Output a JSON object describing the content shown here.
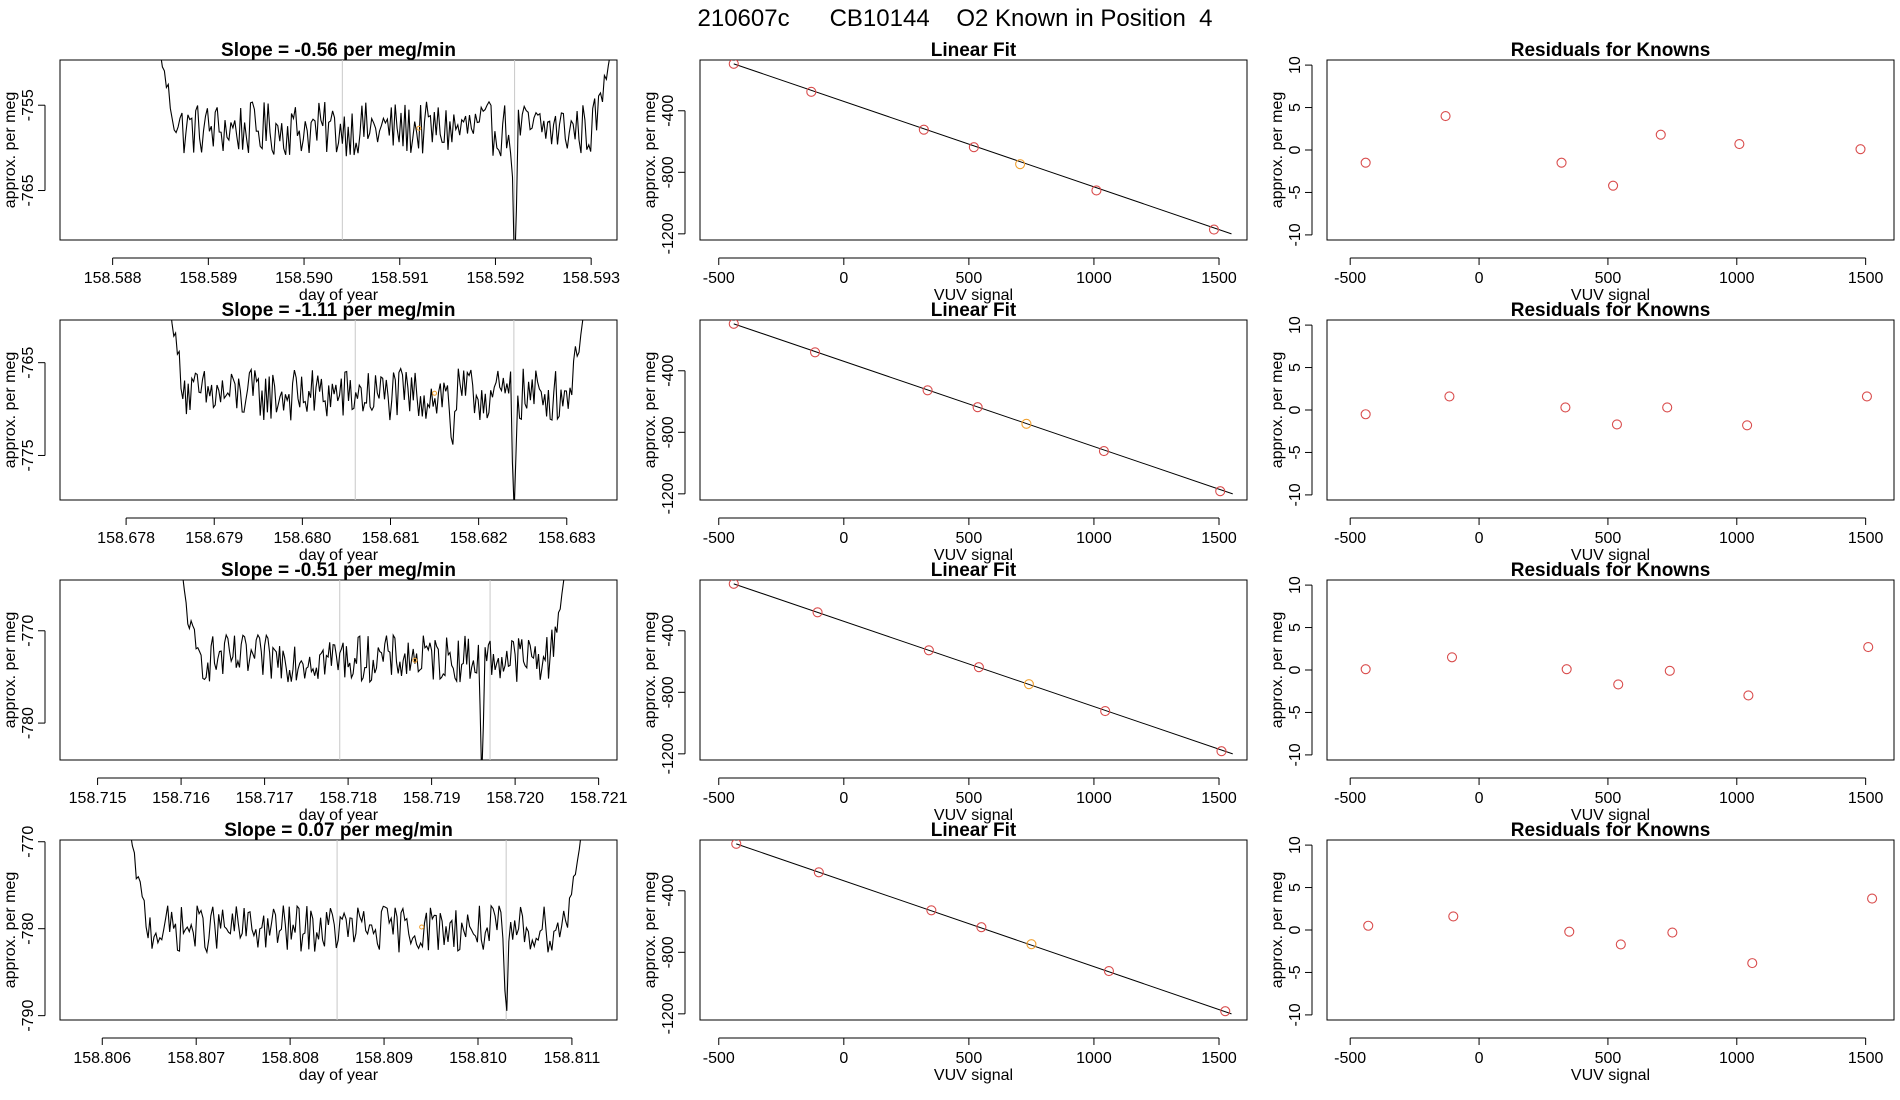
{
  "figure_title": "210607c      CB10144    O2 Known in Position  4",
  "colors": {
    "series": "#000000",
    "marker": "#d94c4c",
    "highlight": "#f0a030",
    "guide": "#c8c8c8",
    "axis": "#000000"
  },
  "chart_data": [
    {
      "type": "line",
      "row": 1,
      "col": 1,
      "title": "Slope =  -0.56  per meg/min",
      "xlabel": "day of year",
      "ylabel": "approx. per meg",
      "xlim": [
        158.58745,
        158.59327
      ],
      "ylim": [
        -770.8,
        -749.7
      ],
      "xticks": [
        "158.588",
        "158.589",
        "158.590",
        "158.591",
        "158.592",
        "158.593"
      ],
      "yticks": [
        "-755",
        "-765"
      ],
      "vlines": [
        158.5904,
        158.5922
      ],
      "marker": {
        "x": 158.5912,
        "y": -757.7
      },
      "x_start": 158.5885,
      "x_end": 158.5932,
      "y_start": -749,
      "y_end": -749,
      "baseline": -757.8,
      "noise": 2.0,
      "dips": [
        {
          "x": 158.5922,
          "y": -775
        }
      ]
    },
    {
      "type": "line",
      "row": 2,
      "col": 1,
      "title": "Slope =  -1.11  per meg/min",
      "xlabel": "day of year",
      "ylabel": "approx. per meg",
      "xlim": [
        158.67725,
        158.68357
      ],
      "ylim": [
        -779.8,
        -760.4
      ],
      "xticks": [
        "158.678",
        "158.679",
        "158.680",
        "158.681",
        "158.682",
        "158.683"
      ],
      "yticks": [
        "-765",
        "-775"
      ],
      "vlines": [
        158.6806,
        158.6824
      ],
      "marker": {
        "x": 158.6815,
        "y": -768.3
      },
      "x_start": 158.6785,
      "x_end": 158.6832,
      "y_start": -759,
      "y_end": -759,
      "baseline": -768.5,
      "noise": 1.8,
      "dips": [
        {
          "x": 158.6824,
          "y": -782
        },
        {
          "x": 158.6817,
          "y": -775
        }
      ]
    },
    {
      "type": "line",
      "row": 3,
      "col": 1,
      "title": "Slope =  -0.51  per meg/min",
      "xlabel": "day of year",
      "ylabel": "approx. per meg",
      "xlim": [
        158.71455,
        158.72122
      ],
      "ylim": [
        -784.0,
        -764.5
      ],
      "xticks": [
        "158.715",
        "158.716",
        "158.717",
        "158.718",
        "158.719",
        "158.720",
        "158.721"
      ],
      "yticks": [
        "-770",
        "-780"
      ],
      "vlines": [
        158.7179,
        158.7197
      ],
      "marker": {
        "x": 158.7188,
        "y": -773.2
      },
      "x_start": 158.716,
      "x_end": 158.7206,
      "y_start": -763,
      "y_end": -763,
      "baseline": -773.0,
      "noise": 1.6,
      "dips": [
        {
          "x": 158.7196,
          "y": -786
        }
      ]
    },
    {
      "type": "line",
      "row": 4,
      "col": 1,
      "title": "Slope =  0.07  per meg/min",
      "xlabel": "day of year",
      "ylabel": "approx. per meg",
      "xlim": [
        158.80555,
        158.81148
      ],
      "ylim": [
        -790.5,
        -769.8
      ],
      "xticks": [
        "158.806",
        "158.807",
        "158.808",
        "158.809",
        "158.810",
        "158.811"
      ],
      "yticks": [
        "-770",
        "-780",
        "-790"
      ],
      "vlines": [
        158.8085,
        158.8103
      ],
      "marker": {
        "x": 158.8094,
        "y": -779.8
      },
      "x_start": 158.8063,
      "x_end": 158.8111,
      "y_start": -769,
      "y_end": -769,
      "baseline": -780.0,
      "noise": 1.7,
      "dips": [
        {
          "x": 158.8103,
          "y": -792
        }
      ]
    },
    {
      "type": "scatter",
      "row": 1,
      "col": 2,
      "title": "Linear Fit",
      "xlabel": "VUV signal",
      "ylabel": "approx. per meg",
      "xlim": [
        -575,
        1612
      ],
      "ylim": [
        -1240,
        -70
      ],
      "xticks": [
        -500,
        0,
        500,
        1000,
        1500
      ],
      "yticks": [
        -400,
        -800,
        -1200
      ],
      "fit": {
        "x0": -440,
        "y0": -95,
        "x1": 1550,
        "y1": -1200
      },
      "x": [
        -440,
        -130,
        320,
        520,
        705,
        1010,
        1480
      ],
      "y": [
        -95,
        -277,
        -523,
        -637,
        -747,
        -918,
        -1172
      ],
      "highlight_index": 4
    },
    {
      "type": "scatter",
      "row": 2,
      "col": 2,
      "title": "Linear Fit",
      "xlabel": "VUV signal",
      "ylabel": "approx. per meg",
      "xlim": [
        -575,
        1612
      ],
      "ylim": [
        -1240,
        -70
      ],
      "xticks": [
        -500,
        0,
        500,
        1000,
        1500
      ],
      "yticks": [
        -400,
        -800,
        -1200
      ],
      "fit": {
        "x0": -440,
        "y0": -95,
        "x1": 1555,
        "y1": -1200
      },
      "x": [
        -440,
        -115,
        335,
        535,
        730,
        1040,
        1505
      ],
      "y": [
        -95,
        -280,
        -527,
        -637,
        -745,
        -922,
        -1183
      ],
      "highlight_index": 4
    },
    {
      "type": "scatter",
      "row": 3,
      "col": 2,
      "title": "Linear Fit",
      "xlabel": "VUV signal",
      "ylabel": "approx. per meg",
      "xlim": [
        -575,
        1612
      ],
      "ylim": [
        -1240,
        -70
      ],
      "xticks": [
        -500,
        0,
        500,
        1000,
        1500
      ],
      "yticks": [
        -400,
        -800,
        -1200
      ],
      "fit": {
        "x0": -440,
        "y0": -95,
        "x1": 1555,
        "y1": -1200
      },
      "x": [
        -440,
        -105,
        340,
        540,
        740,
        1045,
        1510
      ],
      "y": [
        -95,
        -280,
        -527,
        -637,
        -747,
        -922,
        -1183
      ],
      "highlight_index": 4
    },
    {
      "type": "scatter",
      "row": 4,
      "col": 2,
      "title": "Linear Fit",
      "xlabel": "VUV signal",
      "ylabel": "approx. per meg",
      "xlim": [
        -575,
        1612
      ],
      "ylim": [
        -1240,
        -70
      ],
      "xticks": [
        -500,
        0,
        500,
        1000,
        1500
      ],
      "yticks": [
        -400,
        -800,
        -1200
      ],
      "fit": {
        "x0": -430,
        "y0": -95,
        "x1": 1550,
        "y1": -1200
      },
      "x": [
        -430,
        -100,
        350,
        550,
        750,
        1060,
        1525
      ],
      "y": [
        -95,
        -280,
        -527,
        -637,
        -747,
        -922,
        -1183
      ],
      "highlight_index": 4
    },
    {
      "type": "scatter",
      "row": 1,
      "col": 3,
      "title": "Residuals for Knowns",
      "xlabel": "VUV signal",
      "ylabel": "approx. per meg",
      "xlim": [
        -590,
        1610
      ],
      "ylim": [
        -10.6,
        10.6
      ],
      "xticks": [
        -500,
        0,
        500,
        1000,
        1500
      ],
      "yticks": [
        10,
        5,
        0,
        -5,
        -10
      ],
      "x": [
        -440,
        -130,
        320,
        520,
        705,
        1010,
        1480
      ],
      "y": [
        -1.5,
        4.0,
        -1.5,
        -4.2,
        1.8,
        0.7,
        0.1
      ]
    },
    {
      "type": "scatter",
      "row": 2,
      "col": 3,
      "title": "Residuals for Knowns",
      "xlabel": "VUV signal",
      "ylabel": "approx. per meg",
      "xlim": [
        -590,
        1610
      ],
      "ylim": [
        -10.6,
        10.6
      ],
      "xticks": [
        -500,
        0,
        500,
        1000,
        1500
      ],
      "yticks": [
        10,
        5,
        0,
        -5,
        -10
      ],
      "x": [
        -440,
        -115,
        335,
        535,
        730,
        1040,
        1505
      ],
      "y": [
        -0.5,
        1.6,
        0.3,
        -1.7,
        0.3,
        -1.8,
        1.6
      ]
    },
    {
      "type": "scatter",
      "row": 3,
      "col": 3,
      "title": "Residuals for Knowns",
      "xlabel": "VUV signal",
      "ylabel": "approx. per meg",
      "xlim": [
        -590,
        1610
      ],
      "ylim": [
        -10.6,
        10.6
      ],
      "xticks": [
        -500,
        0,
        500,
        1000,
        1500
      ],
      "yticks": [
        10,
        5,
        0,
        -5,
        -10
      ],
      "x": [
        -440,
        -105,
        340,
        540,
        740,
        1045,
        1510
      ],
      "y": [
        0.1,
        1.5,
        0.1,
        -1.7,
        -0.1,
        -3.0,
        2.7
      ]
    },
    {
      "type": "scatter",
      "row": 4,
      "col": 3,
      "title": "Residuals for Knowns",
      "xlabel": "VUV signal",
      "ylabel": "approx. per meg",
      "xlim": [
        -590,
        1610
      ],
      "ylim": [
        -10.6,
        10.6
      ],
      "xticks": [
        -500,
        0,
        500,
        1000,
        1500
      ],
      "yticks": [
        10,
        5,
        0,
        -5,
        -10
      ],
      "x": [
        -430,
        -100,
        350,
        550,
        750,
        1060,
        1525
      ],
      "y": [
        0.5,
        1.6,
        -0.2,
        -1.7,
        -0.3,
        -3.9,
        3.7
      ]
    }
  ]
}
